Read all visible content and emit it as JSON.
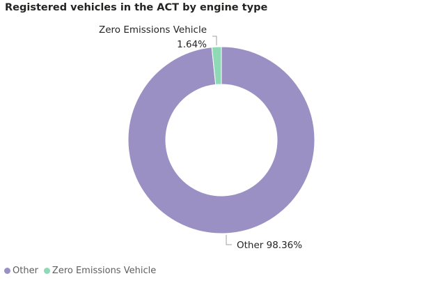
{
  "chart_data": {
    "type": "pie",
    "title": "Registered vehicles in the ACT by engine type",
    "categories": [
      "Other",
      "Zero Emissions Vehicle"
    ],
    "values": [
      98.36,
      1.64
    ],
    "value_labels": [
      "98.36%",
      "1.64%"
    ],
    "colors": [
      "#9b90c4",
      "#8fd9b6"
    ],
    "donut": true,
    "legend": "bottom-left"
  }
}
